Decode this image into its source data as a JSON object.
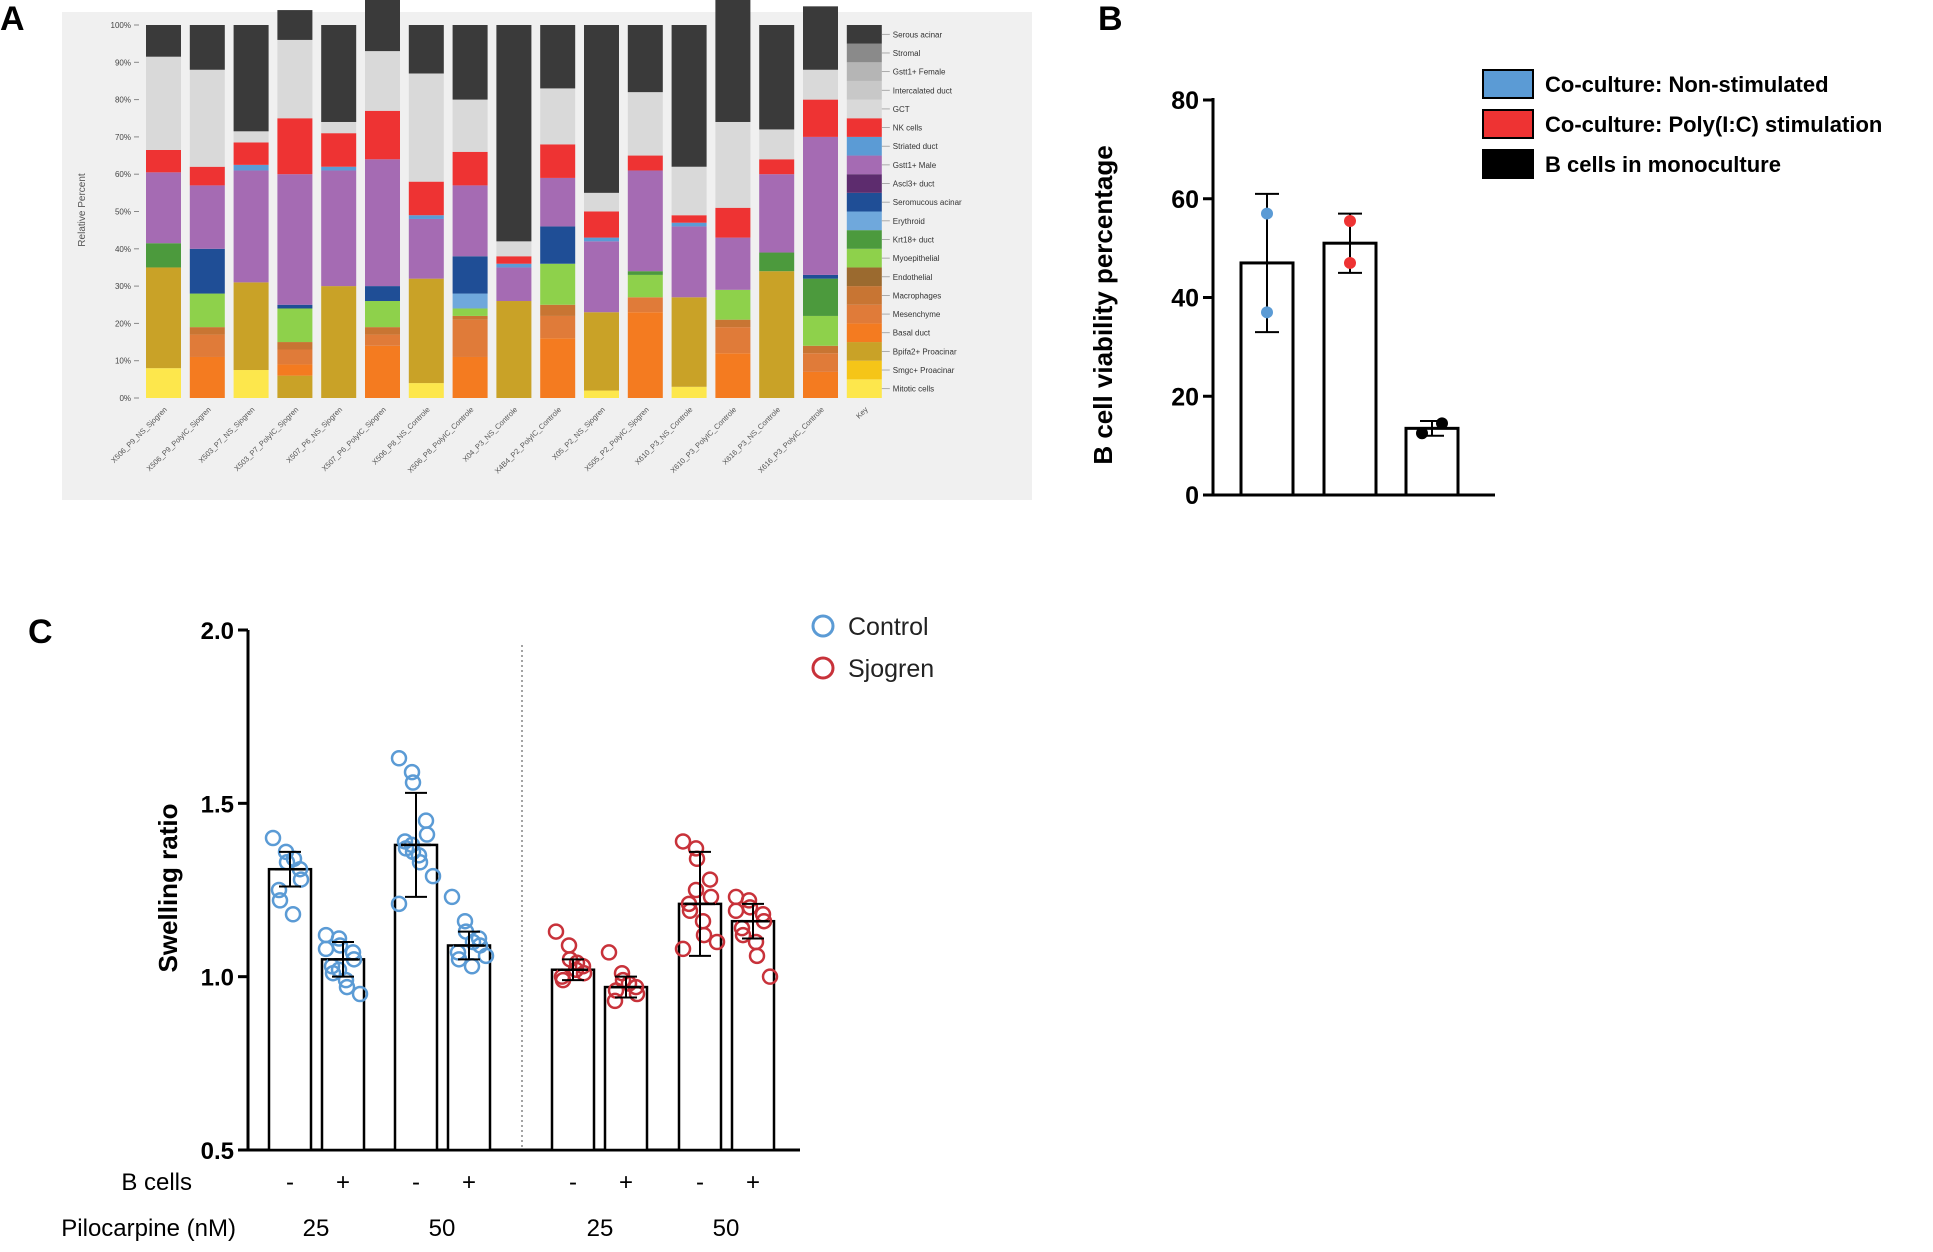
{
  "panels": {
    "a": "A",
    "b": "B",
    "c": "C"
  },
  "chart_data": [
    {
      "panel": "A",
      "type": "bar",
      "stacked": true,
      "ylabel": "Relative Percent",
      "yticks": [
        "0%",
        "10%",
        "20%",
        "30%",
        "40%",
        "50%",
        "60%",
        "70%",
        "80%",
        "90%",
        "100%"
      ],
      "categories": [
        "X506_P9_NS_Sjogren",
        "X506_P9_PolyIC_Sjogren",
        "X503_P7_NS_Sjogren",
        "X503_P7_PolyIC_Sjogren",
        "X507_P6_NS_Sjogren",
        "X507_P6_PolyIC_Sjogren",
        "X506_P8_NS_Controle",
        "X506_P8_PolyIC_Controle",
        "X04_P3_NS_Controle",
        "X4B4_P2_PolyIC_Controle",
        "X05_P2_NS_Sjogren",
        "X505_P2_PolyIC_Sjogren",
        "X610_P3_NS_Controle",
        "X610_P3_PolyIC_Controle",
        "X616_P3_NS_Controle",
        "X616_P3_PolyIC_Controle",
        "Key"
      ],
      "series": [
        {
          "name": "Mitotic cells",
          "color": "#fde74c",
          "values": [
            8,
            0,
            7.5,
            0,
            0,
            0,
            4,
            0,
            0,
            0,
            2,
            0,
            3,
            0,
            0,
            0,
            5
          ]
        },
        {
          "name": "Smgc+ Proacinar",
          "color": "#f5c518",
          "values": [
            0,
            0,
            0,
            0,
            0,
            0,
            0,
            0,
            0,
            0,
            0,
            0,
            0,
            0,
            0,
            0,
            5
          ]
        },
        {
          "name": "Bpifa2+ Proacinar",
          "color": "#c9a227",
          "values": [
            27,
            0,
            23.5,
            6,
            30,
            0,
            28,
            0,
            26,
            0,
            21,
            0,
            24,
            0,
            34,
            0,
            5
          ]
        },
        {
          "name": "Basal duct",
          "color": "#f47b20",
          "values": [
            0,
            11,
            0,
            3,
            0,
            14,
            0,
            11,
            0,
            16,
            0,
            23,
            0,
            12,
            0,
            7,
            5
          ]
        },
        {
          "name": "Mesenchyme",
          "color": "#e07b39",
          "values": [
            0,
            6,
            0,
            4,
            0,
            3,
            0,
            10,
            0,
            6,
            0,
            4,
            0,
            7,
            0,
            5,
            5
          ]
        },
        {
          "name": "Macrophages",
          "color": "#c87533",
          "values": [
            0,
            2,
            0,
            2,
            0,
            2,
            0,
            1,
            0,
            3,
            0,
            0,
            0,
            2,
            0,
            2,
            5
          ]
        },
        {
          "name": "Endothelial",
          "color": "#9b6a2f",
          "values": [
            0,
            0,
            0,
            0,
            0,
            0,
            0,
            0,
            0,
            0,
            0,
            0,
            0,
            0,
            0,
            0,
            5
          ]
        },
        {
          "name": "Myoepithelial",
          "color": "#8ed14b",
          "values": [
            0,
            9,
            0,
            9,
            0,
            7,
            0,
            2,
            0,
            11,
            0,
            6,
            0,
            8,
            0,
            8,
            5
          ]
        },
        {
          "name": "Krt18+ duct",
          "color": "#4c9a3d",
          "values": [
            6.5,
            0,
            0,
            0,
            0,
            0,
            0,
            0,
            0,
            0,
            0,
            1,
            0,
            0,
            5,
            10,
            5
          ]
        },
        {
          "name": "Erythroid",
          "color": "#6fa8dc",
          "values": [
            0,
            0,
            0,
            0,
            0,
            0,
            0,
            4,
            0,
            0,
            0,
            0,
            0,
            0,
            0,
            0,
            5
          ]
        },
        {
          "name": "Seromucous acinar",
          "color": "#1f4e96",
          "values": [
            0,
            12,
            0,
            1,
            0,
            4,
            0,
            10,
            0,
            10,
            0,
            0,
            0,
            0,
            0,
            1,
            5
          ]
        },
        {
          "name": "Ascl3+ duct",
          "color": "#5d2c6e",
          "values": [
            0,
            0,
            0,
            0,
            0,
            0,
            0,
            0,
            0,
            0,
            0,
            0,
            0,
            0,
            0,
            0,
            5
          ]
        },
        {
          "name": "Gstt1+ Male",
          "color": "#a56bb3",
          "values": [
            19,
            17,
            30,
            35,
            31,
            34,
            16,
            19,
            9,
            13,
            19,
            27,
            19,
            14,
            21,
            37,
            5
          ]
        },
        {
          "name": "Striated duct",
          "color": "#5b9bd5",
          "values": [
            0,
            0,
            1.5,
            0,
            1,
            0,
            1,
            0,
            1,
            0,
            1,
            0,
            1,
            0,
            0,
            0,
            5
          ]
        },
        {
          "name": "NK cells",
          "color": "#ee3333",
          "values": [
            6,
            5,
            6,
            15,
            9,
            13,
            9,
            9,
            2,
            9,
            7,
            4,
            2,
            8,
            4,
            10,
            5
          ]
        },
        {
          "name": "GCT",
          "color": "#d9d9d9",
          "values": [
            25,
            26,
            3,
            21,
            3,
            16,
            29,
            14,
            4,
            15,
            5,
            17,
            13,
            23,
            8,
            8,
            5
          ]
        },
        {
          "name": "Intercalated duct",
          "color": "#c8c8c8",
          "values": [
            0,
            0,
            0,
            0,
            0,
            0,
            0,
            0,
            0,
            0,
            0,
            0,
            0,
            0,
            0,
            0,
            5
          ]
        },
        {
          "name": "Gstt1+ Female",
          "color": "#b5b5b5",
          "values": [
            0,
            0,
            0,
            0,
            0,
            0,
            0,
            0,
            0,
            0,
            0,
            0,
            0,
            0,
            0,
            0,
            5
          ]
        },
        {
          "name": "Stromal",
          "color": "#8a8a8a",
          "values": [
            0,
            0,
            0,
            0,
            0,
            0,
            0,
            0,
            0,
            0,
            0,
            0,
            0,
            0,
            0,
            0,
            5
          ]
        },
        {
          "name": "Serous acinar",
          "color": "#3a3a3a",
          "values": [
            8.5,
            12,
            28.5,
            8,
            26,
            14,
            13,
            20,
            58,
            17,
            45,
            18,
            38,
            34,
            28,
            17,
            5
          ]
        }
      ]
    },
    {
      "panel": "B",
      "type": "bar",
      "ylabel": "B cell viability percentage",
      "ylim": [
        0,
        80
      ],
      "yticks": [
        "0",
        "20",
        "40",
        "60",
        "80"
      ],
      "legend": [
        "Co-culture: Non-stimulated",
        "Co-culture: Poly(I:C) stimulation",
        "B cells in monoculture"
      ],
      "legend_colors": [
        "#5b9bd5",
        "#ee3333",
        "#000000"
      ],
      "legend_position": "right",
      "bars": [
        {
          "name": "Co-culture: Non-stimulated",
          "mean": 47,
          "sd": 14,
          "points": [
            57,
            37
          ],
          "color": "#5b9bd5"
        },
        {
          "name": "Co-culture: Poly(I:C) stimulation",
          "mean": 51,
          "sd": 6,
          "points": [
            55.5,
            47
          ],
          "color": "#ee3333"
        },
        {
          "name": "B cells in monoculture",
          "mean": 13.5,
          "sd": 1.5,
          "points": [
            12.5,
            14.5
          ],
          "color": "#000000"
        }
      ]
    },
    {
      "panel": "C",
      "type": "bar",
      "ylabel": "Swelling ratio",
      "ylim": [
        0.5,
        2.0
      ],
      "yticks": [
        "0.5",
        "1.0",
        "1.5",
        "2.0"
      ],
      "legend": [
        "Control",
        "Sjogren"
      ],
      "legend_colors": [
        "#5b9bd5",
        "#c8323a"
      ],
      "legend_position": "top-right",
      "row_labels": [
        "B cells",
        "Pilocarpine (nM)"
      ],
      "bcells_labels": [
        "-",
        "+",
        "-",
        "+",
        "-",
        "+",
        "-",
        "+"
      ],
      "pilocarpine_labels": [
        "25",
        "50",
        "25",
        "50"
      ],
      "bars": [
        {
          "group": "Control",
          "bcells": "-",
          "pilocarpine": "25",
          "mean": 1.31,
          "sd": 0.05,
          "points": [
            1.4,
            1.36,
            1.33,
            1.31,
            1.28,
            1.25,
            1.22,
            1.18,
            1.34
          ]
        },
        {
          "group": "Control",
          "bcells": "+",
          "pilocarpine": "25",
          "mean": 1.05,
          "sd": 0.05,
          "points": [
            1.12,
            1.11,
            1.09,
            1.07,
            1.05,
            1.03,
            1.01,
            0.99,
            0.97,
            0.95,
            1.08,
            1.02
          ]
        },
        {
          "group": "Control",
          "bcells": "-",
          "pilocarpine": "50",
          "mean": 1.38,
          "sd": 0.15,
          "points": [
            1.63,
            1.59,
            1.56,
            1.45,
            1.41,
            1.39,
            1.37,
            1.35,
            1.33,
            1.29,
            1.21,
            1.38,
            1.36
          ]
        },
        {
          "group": "Control",
          "bcells": "+",
          "pilocarpine": "50",
          "mean": 1.09,
          "sd": 0.04,
          "points": [
            1.23,
            1.16,
            1.13,
            1.11,
            1.09,
            1.07,
            1.05,
            1.03,
            1.1,
            1.06
          ]
        },
        {
          "group": "Sjogren",
          "bcells": "-",
          "pilocarpine": "25",
          "mean": 1.02,
          "sd": 0.03,
          "points": [
            1.13,
            1.09,
            1.05,
            1.03,
            1.01,
            1.0,
            0.99,
            1.02,
            1.04
          ]
        },
        {
          "group": "Sjogren",
          "bcells": "+",
          "pilocarpine": "25",
          "mean": 0.97,
          "sd": 0.03,
          "points": [
            1.07,
            1.01,
            0.99,
            0.97,
            0.95,
            0.93,
            0.96,
            0.98
          ]
        },
        {
          "group": "Sjogren",
          "bcells": "-",
          "pilocarpine": "50",
          "mean": 1.21,
          "sd": 0.15,
          "points": [
            1.39,
            1.37,
            1.34,
            1.28,
            1.23,
            1.21,
            1.19,
            1.16,
            1.12,
            1.1,
            1.08,
            1.25
          ]
        },
        {
          "group": "Sjogren",
          "bcells": "+",
          "pilocarpine": "50",
          "mean": 1.16,
          "sd": 0.05,
          "points": [
            1.23,
            1.22,
            1.2,
            1.18,
            1.16,
            1.14,
            1.12,
            1.1,
            1.06,
            1.0,
            1.19
          ]
        }
      ]
    }
  ]
}
